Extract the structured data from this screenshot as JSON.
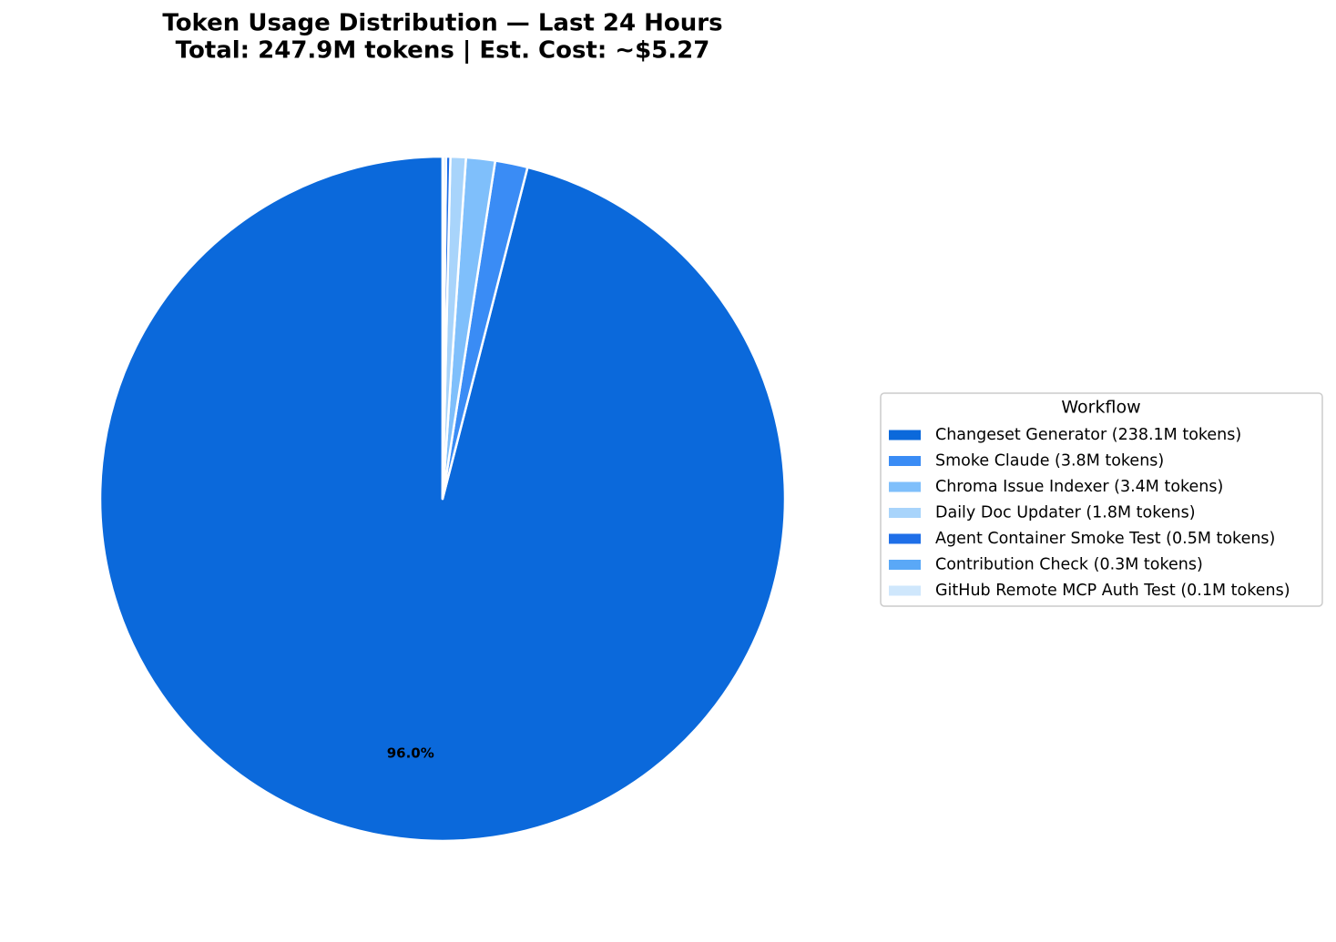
{
  "chart_data": {
    "type": "pie",
    "title": "Token Usage Distribution — Last 24 Hours",
    "subtitle": "Total: 247.9M tokens | Est. Cost: ~$5.27",
    "legend_title": "Workflow",
    "legend": "right",
    "categories": [
      "Changeset Generator (238.1M tokens)",
      "Smoke Claude (3.8M tokens)",
      "Chroma Issue Indexer (3.4M tokens)",
      "Daily Doc Updater (1.8M tokens)",
      "Agent Container Smoke Test (0.5M tokens)",
      "Contribution Check (0.3M tokens)",
      "GitHub Remote MCP Auth Test (0.1M tokens)"
    ],
    "values": [
      238.1,
      3.8,
      3.4,
      1.8,
      0.5,
      0.3,
      0.1
    ],
    "value_labels": [
      "96.0%",
      null,
      null,
      null,
      null,
      null,
      null
    ],
    "colors": [
      "#0b69db",
      "#3a8cf5",
      "#7fbffb",
      "#a8d4fb",
      "#1f6fe8",
      "#5aa8f7",
      "#cfe7fc"
    ]
  }
}
